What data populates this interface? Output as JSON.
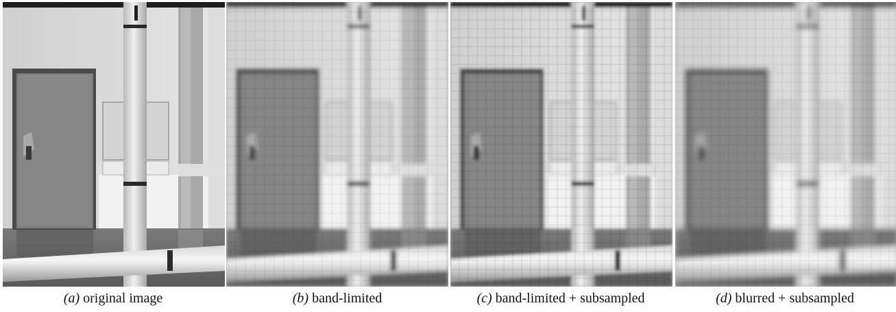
{
  "figure": {
    "panels": [
      {
        "id": "a",
        "label": "(a)",
        "caption": "original image"
      },
      {
        "id": "b",
        "label": "(b)",
        "caption": "band-limited"
      },
      {
        "id": "c",
        "label": "(c)",
        "caption": "band-limited + subsampled"
      },
      {
        "id": "d",
        "label": "(d)",
        "caption": "blurred + subsampled"
      }
    ]
  }
}
